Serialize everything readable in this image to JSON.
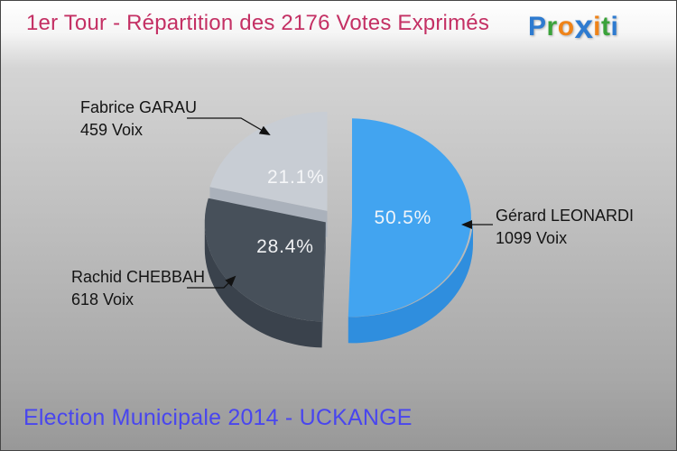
{
  "header": {
    "title": "1er Tour - Répartition des 2176 Votes Exprimés"
  },
  "logo": {
    "name": "Proxiti",
    "letters": [
      {
        "ch": "P",
        "color": "#2e7bd0"
      },
      {
        "ch": "r",
        "color": "#3aa23a"
      },
      {
        "ch": "o",
        "color": "#ef8318"
      },
      {
        "ch": "x",
        "color": "#2e7bd0",
        "big": true
      },
      {
        "ch": "i",
        "color": "#ef8318"
      },
      {
        "ch": "t",
        "color": "#3aa23a"
      },
      {
        "ch": "i",
        "color": "#2e7bd0"
      }
    ]
  },
  "footer": {
    "text": "Election Municipale 2014 - UCKANGE"
  },
  "chart_data": {
    "type": "pie",
    "title": "1er Tour - Répartition des 2176 Votes Exprimés",
    "total_votes": 2176,
    "effect": "3d-exploded",
    "slices": [
      {
        "name": "Gérard LEONARDI",
        "votes": 1099,
        "votes_label": "1099 Voix",
        "value": 50.5,
        "pct_label": "50.5%",
        "color": "#42a4f0",
        "side_color": "#2f8ede"
      },
      {
        "name": "Rachid CHEBBAH",
        "votes": 618,
        "votes_label": "618 Voix",
        "value": 28.4,
        "pct_label": "28.4%",
        "color": "#47505a",
        "side_color": "#3a424c",
        "face_color": "#525c68"
      },
      {
        "name": "Fabrice GARAU",
        "votes": 459,
        "votes_label": "459 Voix",
        "value": 21.1,
        "pct_label": "21.1%",
        "color": "#c8cdd4",
        "face_color": "#aab1bb"
      }
    ]
  }
}
